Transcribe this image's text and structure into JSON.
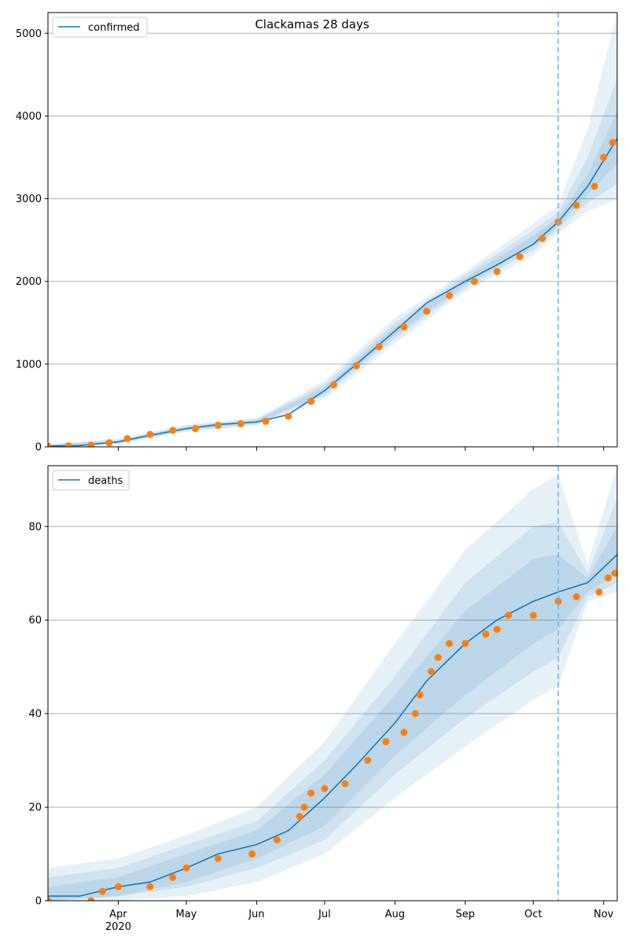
{
  "colors": {
    "model": "#1f77b4",
    "observed": "#ff7f0e",
    "band": "#1f77b4",
    "grid": "#b0b0b0",
    "forecast_line": "#7fb2dd"
  },
  "chart_data": [
    {
      "type": "line",
      "title": "Clackamas 28 days",
      "xlabel": "",
      "ylabel": "",
      "legend": "top-left",
      "grid": "horizontal",
      "series_label": "confirmed",
      "ylim": [
        0,
        5250
      ],
      "yticks": [
        0,
        1000,
        2000,
        3000,
        4000,
        5000
      ],
      "xlim": [
        "2020-03-01",
        "2020-11-07"
      ],
      "forecast_start": "2020-10-12",
      "model": {
        "name": "confirmed",
        "x": [
          "2020-03-01",
          "2020-03-15",
          "2020-04-01",
          "2020-04-15",
          "2020-05-01",
          "2020-05-15",
          "2020-06-01",
          "2020-06-15",
          "2020-07-01",
          "2020-07-15",
          "2020-08-01",
          "2020-08-15",
          "2020-09-01",
          "2020-09-15",
          "2020-10-01",
          "2020-10-12",
          "2020-10-25",
          "2020-11-07"
        ],
        "y": [
          10,
          15,
          60,
          140,
          220,
          270,
          300,
          390,
          680,
          1000,
          1400,
          1740,
          2000,
          2200,
          2450,
          2720,
          3150,
          3730
        ]
      },
      "bands": [
        {
          "x": [
            "2020-03-01",
            "2020-04-01",
            "2020-05-01",
            "2020-06-01",
            "2020-07-01",
            "2020-08-01",
            "2020-09-01",
            "2020-10-01",
            "2020-10-12",
            "2020-10-25",
            "2020-11-07"
          ],
          "low": [
            0,
            30,
            180,
            260,
            580,
            1250,
            1880,
            2320,
            2580,
            2850,
            2990
          ],
          "high": [
            30,
            100,
            270,
            350,
            800,
            1560,
            2120,
            2700,
            2920,
            3850,
            5250
          ]
        },
        {
          "x": [
            "2020-03-01",
            "2020-04-01",
            "2020-05-01",
            "2020-06-01",
            "2020-07-01",
            "2020-08-01",
            "2020-09-01",
            "2020-10-01",
            "2020-10-12",
            "2020-10-25",
            "2020-11-07"
          ],
          "low": [
            0,
            40,
            195,
            275,
            620,
            1310,
            1920,
            2380,
            2630,
            2950,
            3180
          ],
          "high": [
            25,
            85,
            255,
            335,
            760,
            1500,
            2080,
            2620,
            2830,
            3500,
            4450
          ]
        },
        {
          "x": [
            "2020-03-01",
            "2020-04-01",
            "2020-05-01",
            "2020-06-01",
            "2020-07-01",
            "2020-08-01",
            "2020-09-01",
            "2020-10-01",
            "2020-10-12",
            "2020-10-25",
            "2020-11-07"
          ],
          "low": [
            0,
            50,
            205,
            285,
            650,
            1350,
            1960,
            2420,
            2670,
            3050,
            3420
          ],
          "high": [
            20,
            75,
            240,
            320,
            720,
            1450,
            2040,
            2550,
            2770,
            3300,
            4050
          ]
        }
      ],
      "observed": {
        "x": [
          "2020-03-01",
          "2020-03-10",
          "2020-03-20",
          "2020-03-28",
          "2020-04-05",
          "2020-04-15",
          "2020-04-25",
          "2020-05-05",
          "2020-05-15",
          "2020-05-25",
          "2020-06-05",
          "2020-06-15",
          "2020-06-25",
          "2020-07-05",
          "2020-07-15",
          "2020-07-25",
          "2020-08-05",
          "2020-08-15",
          "2020-08-25",
          "2020-09-05",
          "2020-09-15",
          "2020-09-25",
          "2020-10-05",
          "2020-10-12",
          "2020-10-20",
          "2020-10-28",
          "2020-11-01",
          "2020-11-05"
        ],
        "y": [
          10,
          12,
          20,
          50,
          100,
          150,
          200,
          220,
          260,
          280,
          310,
          370,
          550,
          750,
          980,
          1210,
          1450,
          1640,
          1830,
          2000,
          2120,
          2300,
          2520,
          2720,
          2920,
          3150,
          3500,
          3680
        ]
      }
    },
    {
      "type": "line",
      "title": "",
      "xlabel": "",
      "ylabel": "",
      "legend": "top-left",
      "grid": "horizontal",
      "series_label": "deaths",
      "ylim": [
        0,
        93
      ],
      "yticks": [
        0,
        20,
        40,
        60,
        80
      ],
      "xlim": [
        "2020-03-01",
        "2020-11-07"
      ],
      "xticks": [
        "2020-04-01",
        "2020-05-01",
        "2020-06-01",
        "2020-07-01",
        "2020-08-01",
        "2020-09-01",
        "2020-10-01",
        "2020-11-01"
      ],
      "xtick_labels": [
        "Apr",
        "May",
        "Jun",
        "Jul",
        "Aug",
        "Sep",
        "Oct",
        "Nov"
      ],
      "year_label": "2020",
      "forecast_start": "2020-10-12",
      "model": {
        "name": "deaths",
        "x": [
          "2020-03-01",
          "2020-03-15",
          "2020-04-01",
          "2020-04-15",
          "2020-05-01",
          "2020-05-15",
          "2020-06-01",
          "2020-06-15",
          "2020-07-01",
          "2020-07-15",
          "2020-08-01",
          "2020-08-15",
          "2020-09-01",
          "2020-09-15",
          "2020-10-01",
          "2020-10-12",
          "2020-10-25",
          "2020-11-07"
        ],
        "y": [
          1,
          1,
          3,
          4,
          7,
          10,
          12,
          15,
          22,
          29,
          38,
          47,
          55,
          60,
          64,
          66,
          68,
          74
        ]
      },
      "bands": [
        {
          "x": [
            "2020-03-01",
            "2020-04-01",
            "2020-05-01",
            "2020-06-01",
            "2020-07-01",
            "2020-08-01",
            "2020-09-01",
            "2020-10-01",
            "2020-10-12",
            "2020-10-25",
            "2020-11-07"
          ],
          "low": [
            0,
            0,
            1,
            4,
            10,
            22,
            33,
            43,
            46,
            64,
            66
          ],
          "high": [
            7,
            9,
            14,
            20,
            34,
            55,
            75,
            88,
            91,
            72,
            93
          ]
        },
        {
          "x": [
            "2020-03-01",
            "2020-04-01",
            "2020-05-01",
            "2020-06-01",
            "2020-07-01",
            "2020-08-01",
            "2020-09-01",
            "2020-10-01",
            "2020-10-12",
            "2020-10-25",
            "2020-11-07"
          ],
          "low": [
            0,
            1,
            3,
            7,
            13,
            27,
            39,
            49,
            52,
            65,
            68
          ],
          "high": [
            5,
            7,
            12,
            17,
            30,
            48,
            68,
            80,
            81,
            70,
            86
          ]
        },
        {
          "x": [
            "2020-03-01",
            "2020-04-01",
            "2020-05-01",
            "2020-06-01",
            "2020-07-01",
            "2020-08-01",
            "2020-09-01",
            "2020-10-01",
            "2020-10-12",
            "2020-10-25",
            "2020-11-07"
          ],
          "low": [
            0,
            1,
            4,
            9,
            16,
            31,
            44,
            55,
            58,
            66,
            70
          ],
          "high": [
            3,
            5,
            10,
            15,
            27,
            44,
            62,
            73,
            74,
            69,
            80
          ]
        }
      ],
      "observed": {
        "x": [
          "2020-03-01",
          "2020-03-20",
          "2020-03-25",
          "2020-04-01",
          "2020-04-15",
          "2020-04-25",
          "2020-05-01",
          "2020-05-15",
          "2020-05-30",
          "2020-06-10",
          "2020-06-20",
          "2020-06-22",
          "2020-06-25",
          "2020-07-01",
          "2020-07-10",
          "2020-07-20",
          "2020-07-28",
          "2020-08-05",
          "2020-08-10",
          "2020-08-12",
          "2020-08-17",
          "2020-08-20",
          "2020-08-25",
          "2020-09-01",
          "2020-09-10",
          "2020-09-15",
          "2020-09-20",
          "2020-10-01",
          "2020-10-12",
          "2020-10-20",
          "2020-10-30",
          "2020-11-03",
          "2020-11-06"
        ],
        "y": [
          0,
          0,
          2,
          3,
          3,
          5,
          7,
          9,
          10,
          13,
          18,
          20,
          23,
          24,
          25,
          30,
          34,
          36,
          40,
          44,
          49,
          52,
          55,
          55,
          57,
          58,
          61,
          61,
          64,
          65,
          66,
          69,
          70
        ]
      }
    }
  ]
}
